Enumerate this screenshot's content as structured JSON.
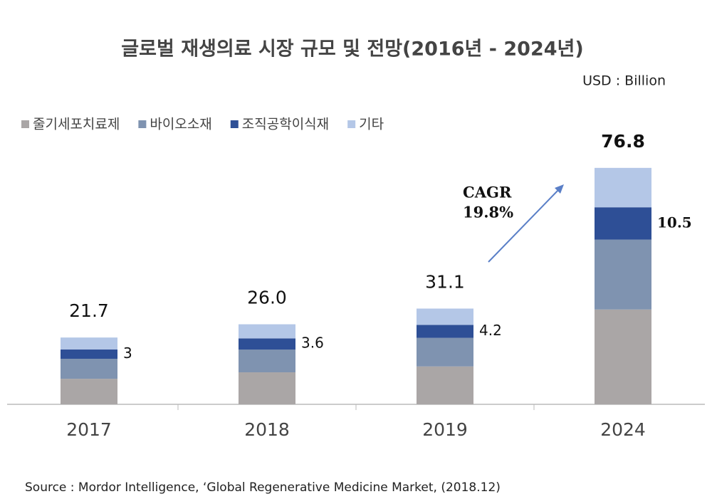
{
  "chart_data": {
    "type": "bar",
    "stacked": true,
    "title": "글로벌 재생의료 시장 규모 및 전망(2016년 - 2024년)",
    "unit_note": "USD : Billion",
    "source": "Source : Mordor Intelligence, ‘Global Regenerative Medicine Market, (2018.12)",
    "annotation": {
      "line1": "CAGR",
      "line2": "19.8%"
    },
    "categories": [
      "2017",
      "2018",
      "2019",
      "2024"
    ],
    "ylim": [
      0,
      80
    ],
    "legend": "top-left",
    "series": [
      {
        "name": "줄기세포치료제",
        "color": "#aaa6a6",
        "values": [
          8.3,
          10.4,
          12.3,
          30.8
        ]
      },
      {
        "name": "바이오소재",
        "color": "#7f93b0",
        "values": [
          6.5,
          7.4,
          9.3,
          22.7
        ]
      },
      {
        "name": "조직공학이식재",
        "color": "#2e4f96",
        "values": [
          3,
          3.6,
          4.2,
          10.5
        ]
      },
      {
        "name": "기타",
        "color": "#b4c7e7",
        "values": [
          3.9,
          4.6,
          5.3,
          12.8
        ]
      }
    ],
    "labeled_series": 2,
    "totals": {
      "values": [
        21.7,
        26,
        31.1,
        76.8
      ],
      "value_labels": [
        "21.7",
        "26.0",
        "31.1",
        "76.8"
      ]
    }
  }
}
